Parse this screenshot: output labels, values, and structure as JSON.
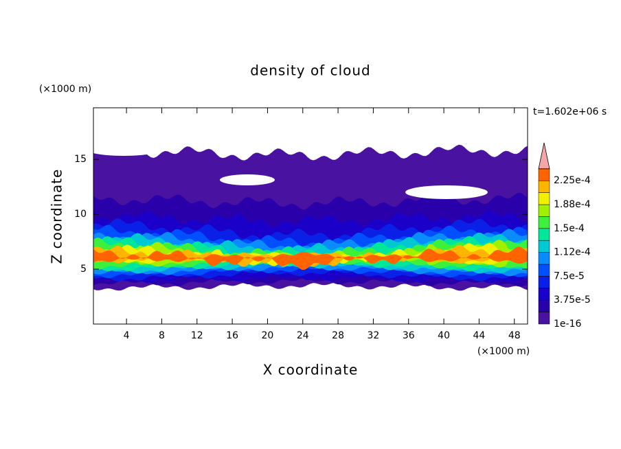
{
  "chart_data": {
    "type": "contour",
    "title": "density of cloud",
    "x_label": "X coordinate",
    "y_label": "Z coordinate",
    "x_unit": "(×1000 m)",
    "y_unit": "(×1000 m)",
    "time_label": "t=1.602e+06 s",
    "xlim": [
      0.25,
      49.5
    ],
    "ylim": [
      0,
      19.7
    ],
    "xticks": [
      4,
      8,
      12,
      16,
      20,
      24,
      28,
      32,
      36,
      40,
      44,
      48
    ],
    "yticks": [
      5,
      10,
      15
    ],
    "colorbar": {
      "levels": [
        1e-16,
        1.875e-05,
        3.75e-05,
        5.625e-05,
        7.5e-05,
        9.375e-05,
        0.0001125,
        0.00013125,
        0.00015,
        0.00016875,
        0.0001875,
        0.00020625,
        0.000225,
        0.00024375
      ],
      "colors": [
        "#4a12a0",
        "#2a00aa",
        "#1a00c8",
        "#0a20e6",
        "#0050ff",
        "#0a8cff",
        "#00c8d2",
        "#00e69a",
        "#3cf03c",
        "#a0f000",
        "#f0f000",
        "#ffb400",
        "#ff6400"
      ],
      "over_color": "#f4a6a6",
      "ticks": [
        {
          "value": 1e-16,
          "label": "1e-16"
        },
        {
          "value": 3.75e-05,
          "label": "3.75e-5"
        },
        {
          "value": 7.5e-05,
          "label": "7.5e-5"
        },
        {
          "value": 0.0001125,
          "label": "1.12e-4"
        },
        {
          "value": 0.00015,
          "label": "1.5e-4"
        },
        {
          "value": 0.0001875,
          "label": "1.88e-4"
        },
        {
          "value": 0.000225,
          "label": "2.25e-4"
        }
      ]
    }
  }
}
